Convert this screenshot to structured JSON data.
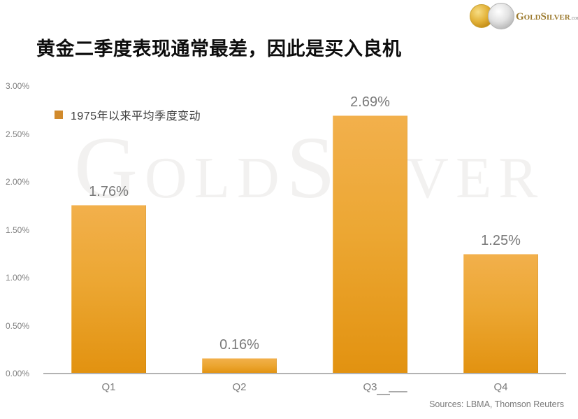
{
  "page": {
    "background": "#FFFFFF"
  },
  "header": {
    "title": "黄金二季度表现通常最差，因此是买入良机"
  },
  "logo": {
    "brand": {
      "g": "G",
      "old": "OLD",
      "s": "S",
      "ilver": "ILVER",
      "domain": ".com",
      "tm": "™"
    },
    "colors": {
      "text": "#9C7A2E",
      "gold_coin": "#D9A520",
      "silver_coin": "#C8C8C8"
    }
  },
  "legend": {
    "label": "1975年以来平均季度变动",
    "swatch_color": "#D18A2C"
  },
  "watermark": {
    "g": "G",
    "old": "OLD",
    "s": "S",
    "ilver": "ILVER",
    "color": "#F2F1F0"
  },
  "chart_data": {
    "type": "bar",
    "title": "黄金二季度表现通常最差，因此是买入良机",
    "series_name": "1975年以来平均季度变动",
    "categories": [
      "Q1",
      "Q2",
      "Q3",
      "Q4"
    ],
    "values": [
      1.76,
      0.16,
      2.69,
      1.25
    ],
    "value_labels": [
      "1.76%",
      "0.16%",
      "2.69%",
      "1.25%"
    ],
    "unit": "%",
    "ylim": [
      0,
      3.0
    ],
    "ytick_step": 0.5,
    "yticks": [
      "0.00%",
      "0.50%",
      "1.00%",
      "1.50%",
      "2.00%",
      "2.50%",
      "3.00%"
    ],
    "grid": false,
    "legend_position": "top-left-inside",
    "bar_gradient_top": "#F2B04C",
    "bar_gradient_bottom": "#E29210",
    "axis_line_color": "#B3B3B3",
    "label_color": "#7A7A7A"
  },
  "footer": {
    "sources": "Sources: LBMA, Thomson Reuters"
  }
}
